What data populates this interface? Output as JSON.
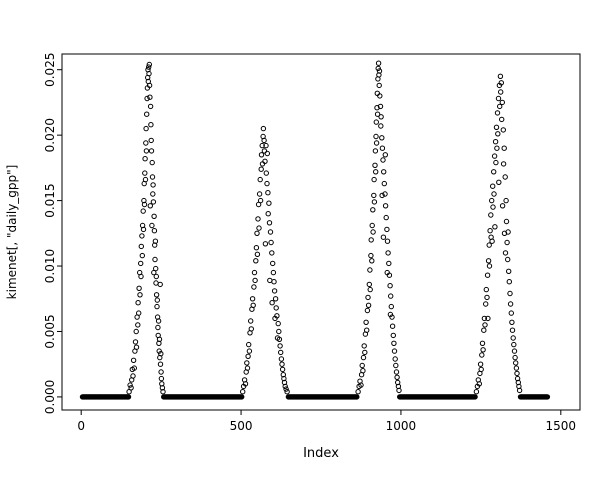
{
  "chart_data": {
    "type": "scatter",
    "xlabel": "Index",
    "ylabel": "kimenet[, \"daily_gpp\"]",
    "xlim": [
      -60,
      1560
    ],
    "ylim": [
      -0.001,
      0.0262
    ],
    "grid": false,
    "legend": "none",
    "x_ticks": {
      "values": [
        0,
        500,
        1000,
        1500
      ],
      "labels": [
        "0",
        "500",
        "1000",
        "1500"
      ]
    },
    "y_ticks": {
      "values": [
        0,
        0.005,
        0.01,
        0.015,
        0.02,
        0.025
      ],
      "labels": [
        "0.000",
        "0.005",
        "0.010",
        "0.015",
        "0.020",
        "0.025"
      ]
    },
    "marker": {
      "shape": "open-circle",
      "radius": 2.2,
      "color": "#000000"
    },
    "zero_runs": [
      [
        4,
        148,
        2
      ],
      [
        258,
        502,
        2
      ],
      [
        648,
        862,
        2
      ],
      [
        996,
        1232,
        2
      ],
      [
        1374,
        1458,
        2
      ]
    ],
    "points": [
      [
        150,
        0.0004
      ],
      [
        153,
        0.0009
      ],
      [
        156,
        0.0007
      ],
      [
        158,
        0.0013
      ],
      [
        160,
        0.0021
      ],
      [
        162,
        0.0016
      ],
      [
        164,
        0.0028
      ],
      [
        166,
        0.0022
      ],
      [
        168,
        0.0035
      ],
      [
        170,
        0.0042
      ],
      [
        172,
        0.005
      ],
      [
        173,
        0.0038
      ],
      [
        175,
        0.0061
      ],
      [
        177,
        0.0055
      ],
      [
        178,
        0.0072
      ],
      [
        180,
        0.0064
      ],
      [
        181,
        0.0083
      ],
      [
        183,
        0.0095
      ],
      [
        184,
        0.0078
      ],
      [
        186,
        0.0102
      ],
      [
        187,
        0.0092
      ],
      [
        188,
        0.0115
      ],
      [
        190,
        0.0123
      ],
      [
        191,
        0.0108
      ],
      [
        192,
        0.0131
      ],
      [
        194,
        0.0142
      ],
      [
        195,
        0.0128
      ],
      [
        196,
        0.015
      ],
      [
        197,
        0.0163
      ],
      [
        198,
        0.0147
      ],
      [
        199,
        0.0171
      ],
      [
        200,
        0.0182
      ],
      [
        201,
        0.0166
      ],
      [
        202,
        0.0194
      ],
      [
        203,
        0.0205
      ],
      [
        204,
        0.0188
      ],
      [
        205,
        0.0216
      ],
      [
        206,
        0.0228
      ],
      [
        207,
        0.0236
      ],
      [
        208,
        0.0244
      ],
      [
        209,
        0.025
      ],
      [
        210,
        0.0241
      ],
      [
        211,
        0.0252
      ],
      [
        212,
        0.0247
      ],
      [
        213,
        0.0254
      ],
      [
        214,
        0.0238
      ],
      [
        215,
        0.0229
      ],
      [
        216,
        0.0146
      ],
      [
        217,
        0.0222
      ],
      [
        218,
        0.0208
      ],
      [
        219,
        0.0196
      ],
      [
        220,
        0.0188
      ],
      [
        221,
        0.0131
      ],
      [
        222,
        0.0179
      ],
      [
        223,
        0.0168
      ],
      [
        224,
        0.0155
      ],
      [
        225,
        0.0162
      ],
      [
        226,
        0.0149
      ],
      [
        227,
        0.0095
      ],
      [
        228,
        0.0138
      ],
      [
        229,
        0.0127
      ],
      [
        230,
        0.0116
      ],
      [
        231,
        0.0105
      ],
      [
        232,
        0.0119
      ],
      [
        233,
        0.0098
      ],
      [
        234,
        0.0087
      ],
      [
        235,
        0.0092
      ],
      [
        236,
        0.0078
      ],
      [
        237,
        0.0069
      ],
      [
        238,
        0.0074
      ],
      [
        239,
        0.0061
      ],
      [
        240,
        0.0053
      ],
      [
        241,
        0.0047
      ],
      [
        242,
        0.0058
      ],
      [
        243,
        0.0041
      ],
      [
        244,
        0.0035
      ],
      [
        245,
        0.0044
      ],
      [
        246,
        0.003
      ],
      [
        247,
        0.0086
      ],
      [
        248,
        0.0025
      ],
      [
        249,
        0.0033
      ],
      [
        250,
        0.0019
      ],
      [
        251,
        0.0014
      ],
      [
        252,
        0.001
      ],
      [
        254,
        0.0007
      ],
      [
        256,
        0.0004
      ],
      [
        505,
        0.0004
      ],
      [
        508,
        0.0008
      ],
      [
        511,
        0.0013
      ],
      [
        514,
        0.001
      ],
      [
        516,
        0.0019
      ],
      [
        518,
        0.0026
      ],
      [
        520,
        0.0022
      ],
      [
        522,
        0.0031
      ],
      [
        524,
        0.004
      ],
      [
        526,
        0.0035
      ],
      [
        528,
        0.0049
      ],
      [
        530,
        0.0058
      ],
      [
        532,
        0.0052
      ],
      [
        534,
        0.0067
      ],
      [
        536,
        0.0075
      ],
      [
        538,
        0.007
      ],
      [
        540,
        0.0084
      ],
      [
        542,
        0.0095
      ],
      [
        544,
        0.0089
      ],
      [
        546,
        0.0104
      ],
      [
        548,
        0.0114
      ],
      [
        550,
        0.0125
      ],
      [
        551,
        0.0109
      ],
      [
        553,
        0.0136
      ],
      [
        555,
        0.0147
      ],
      [
        556,
        0.0129
      ],
      [
        558,
        0.0155
      ],
      [
        560,
        0.0166
      ],
      [
        561,
        0.015
      ],
      [
        563,
        0.0174
      ],
      [
        564,
        0.0185
      ],
      [
        566,
        0.0192
      ],
      [
        567,
        0.0178
      ],
      [
        569,
        0.0199
      ],
      [
        570,
        0.0205
      ],
      [
        572,
        0.0196
      ],
      [
        573,
        0.0188
      ],
      [
        575,
        0.018
      ],
      [
        576,
        0.0117
      ],
      [
        578,
        0.0192
      ],
      [
        579,
        0.0171
      ],
      [
        581,
        0.0163
      ],
      [
        582,
        0.0186
      ],
      [
        584,
        0.0156
      ],
      [
        585,
        0.014
      ],
      [
        587,
        0.0148
      ],
      [
        589,
        0.0133
      ],
      [
        590,
        0.0089
      ],
      [
        592,
        0.0126
      ],
      [
        594,
        0.0118
      ],
      [
        596,
        0.011
      ],
      [
        597,
        0.0072
      ],
      [
        599,
        0.0102
      ],
      [
        601,
        0.0095
      ],
      [
        603,
        0.0088
      ],
      [
        605,
        0.0081
      ],
      [
        606,
        0.006
      ],
      [
        608,
        0.0075
      ],
      [
        610,
        0.0068
      ],
      [
        612,
        0.0062
      ],
      [
        614,
        0.0045
      ],
      [
        616,
        0.0056
      ],
      [
        618,
        0.005
      ],
      [
        620,
        0.0044
      ],
      [
        622,
        0.0039
      ],
      [
        624,
        0.0034
      ],
      [
        626,
        0.0029
      ],
      [
        628,
        0.0025
      ],
      [
        630,
        0.0021
      ],
      [
        632,
        0.0017
      ],
      [
        634,
        0.0014
      ],
      [
        636,
        0.0011
      ],
      [
        638,
        0.0008
      ],
      [
        641,
        0.0006
      ],
      [
        644,
        0.0004
      ],
      [
        866,
        0.0004
      ],
      [
        869,
        0.0008
      ],
      [
        872,
        0.0012
      ],
      [
        875,
        0.0009
      ],
      [
        877,
        0.0017
      ],
      [
        879,
        0.0024
      ],
      [
        881,
        0.002
      ],
      [
        883,
        0.003
      ],
      [
        885,
        0.0039
      ],
      [
        887,
        0.0034
      ],
      [
        889,
        0.0048
      ],
      [
        891,
        0.0057
      ],
      [
        893,
        0.0051
      ],
      [
        895,
        0.0066
      ],
      [
        897,
        0.0076
      ],
      [
        899,
        0.007
      ],
      [
        901,
        0.0086
      ],
      [
        903,
        0.0097
      ],
      [
        904,
        0.0082
      ],
      [
        906,
        0.0108
      ],
      [
        907,
        0.012
      ],
      [
        909,
        0.0104
      ],
      [
        910,
        0.0131
      ],
      [
        912,
        0.0143
      ],
      [
        913,
        0.0126
      ],
      [
        915,
        0.0154
      ],
      [
        916,
        0.0166
      ],
      [
        917,
        0.0149
      ],
      [
        919,
        0.0177
      ],
      [
        920,
        0.0188
      ],
      [
        921,
        0.0172
      ],
      [
        922,
        0.0199
      ],
      [
        923,
        0.021
      ],
      [
        924,
        0.0194
      ],
      [
        925,
        0.0221
      ],
      [
        926,
        0.0232
      ],
      [
        927,
        0.0216
      ],
      [
        928,
        0.0243
      ],
      [
        929,
        0.0251
      ],
      [
        930,
        0.0255
      ],
      [
        931,
        0.0246
      ],
      [
        932,
        0.0238
      ],
      [
        933,
        0.0249
      ],
      [
        934,
        0.023
      ],
      [
        936,
        0.0222
      ],
      [
        937,
        0.0207
      ],
      [
        938,
        0.0214
      ],
      [
        940,
        0.0198
      ],
      [
        941,
        0.0154
      ],
      [
        942,
        0.019
      ],
      [
        944,
        0.0181
      ],
      [
        945,
        0.0122
      ],
      [
        946,
        0.0172
      ],
      [
        948,
        0.0163
      ],
      [
        950,
        0.0155
      ],
      [
        951,
        0.0185
      ],
      [
        952,
        0.0146
      ],
      [
        954,
        0.0137
      ],
      [
        956,
        0.0128
      ],
      [
        957,
        0.0095
      ],
      [
        958,
        0.0119
      ],
      [
        960,
        0.011
      ],
      [
        962,
        0.0102
      ],
      [
        964,
        0.0093
      ],
      [
        966,
        0.0085
      ],
      [
        967,
        0.0063
      ],
      [
        968,
        0.0077
      ],
      [
        970,
        0.0069
      ],
      [
        972,
        0.0061
      ],
      [
        974,
        0.0054
      ],
      [
        976,
        0.0047
      ],
      [
        978,
        0.0041
      ],
      [
        980,
        0.0035
      ],
      [
        982,
        0.0029
      ],
      [
        984,
        0.0024
      ],
      [
        986,
        0.0019
      ],
      [
        988,
        0.0015
      ],
      [
        990,
        0.0011
      ],
      [
        992,
        0.0008
      ],
      [
        994,
        0.0005
      ],
      [
        1236,
        0.0004
      ],
      [
        1239,
        0.0008
      ],
      [
        1242,
        0.0013
      ],
      [
        1245,
        0.001
      ],
      [
        1247,
        0.0018
      ],
      [
        1249,
        0.0025
      ],
      [
        1251,
        0.0021
      ],
      [
        1253,
        0.0032
      ],
      [
        1255,
        0.0041
      ],
      [
        1257,
        0.0036
      ],
      [
        1259,
        0.0051
      ],
      [
        1261,
        0.006
      ],
      [
        1263,
        0.0055
      ],
      [
        1265,
        0.0071
      ],
      [
        1267,
        0.0082
      ],
      [
        1269,
        0.0076
      ],
      [
        1271,
        0.0093
      ],
      [
        1272,
        0.006
      ],
      [
        1274,
        0.0104
      ],
      [
        1276,
        0.0116
      ],
      [
        1277,
        0.01
      ],
      [
        1279,
        0.0127
      ],
      [
        1281,
        0.0139
      ],
      [
        1282,
        0.0122
      ],
      [
        1284,
        0.015
      ],
      [
        1285,
        0.0119
      ],
      [
        1287,
        0.0161
      ],
      [
        1288,
        0.0145
      ],
      [
        1290,
        0.0172
      ],
      [
        1291,
        0.0155
      ],
      [
        1293,
        0.0184
      ],
      [
        1294,
        0.013
      ],
      [
        1296,
        0.0195
      ],
      [
        1297,
        0.0179
      ],
      [
        1299,
        0.0206
      ],
      [
        1300,
        0.019
      ],
      [
        1302,
        0.0217
      ],
      [
        1303,
        0.0201
      ],
      [
        1305,
        0.0228
      ],
      [
        1306,
        0.0164
      ],
      [
        1308,
        0.0238
      ],
      [
        1309,
        0.0222
      ],
      [
        1311,
        0.0245
      ],
      [
        1312,
        0.0233
      ],
      [
        1314,
        0.024
      ],
      [
        1315,
        0.0212
      ],
      [
        1317,
        0.0225
      ],
      [
        1318,
        0.0146
      ],
      [
        1320,
        0.0204
      ],
      [
        1321,
        0.0178
      ],
      [
        1323,
        0.019
      ],
      [
        1324,
        0.0125
      ],
      [
        1326,
        0.0168
      ],
      [
        1327,
        0.011
      ],
      [
        1329,
        0.015
      ],
      [
        1330,
        0.0134
      ],
      [
        1332,
        0.0118
      ],
      [
        1334,
        0.0105
      ],
      [
        1335,
        0.0126
      ],
      [
        1337,
        0.0096
      ],
      [
        1339,
        0.0088
      ],
      [
        1341,
        0.0079
      ],
      [
        1343,
        0.0071
      ],
      [
        1345,
        0.0064
      ],
      [
        1347,
        0.0057
      ],
      [
        1349,
        0.0051
      ],
      [
        1351,
        0.0045
      ],
      [
        1353,
        0.004
      ],
      [
        1355,
        0.0035
      ],
      [
        1357,
        0.003
      ],
      [
        1359,
        0.0026
      ],
      [
        1361,
        0.0022
      ],
      [
        1363,
        0.0018
      ],
      [
        1365,
        0.0014
      ],
      [
        1367,
        0.0011
      ],
      [
        1369,
        0.0008
      ],
      [
        1371,
        0.0005
      ]
    ]
  }
}
